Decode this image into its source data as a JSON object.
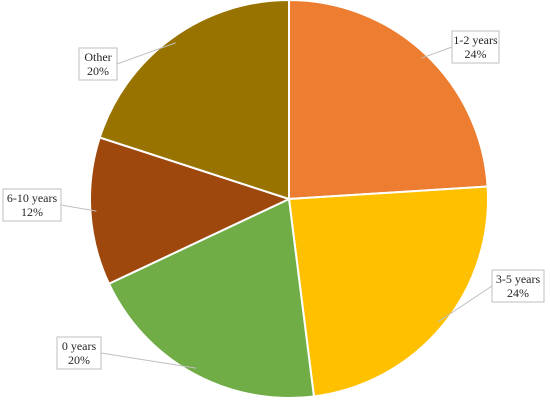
{
  "chart_data": {
    "type": "pie",
    "title": "",
    "slices": [
      {
        "label": "1-2 years",
        "value": 24,
        "display": "24%",
        "color": "#ED7D31"
      },
      {
        "label": "3-5 years",
        "value": 24,
        "display": "24%",
        "color": "#FFC000"
      },
      {
        "label": "0 years",
        "value": 20,
        "display": "20%",
        "color": "#70AD47"
      },
      {
        "label": "6-10 years",
        "value": 12,
        "display": "12%",
        "color": "#9E480E"
      },
      {
        "label": "Other",
        "value": 20,
        "display": "20%",
        "color": "#997300"
      }
    ],
    "start_angle": "12 o'clock",
    "direction": "clockwise",
    "legend": "none"
  }
}
